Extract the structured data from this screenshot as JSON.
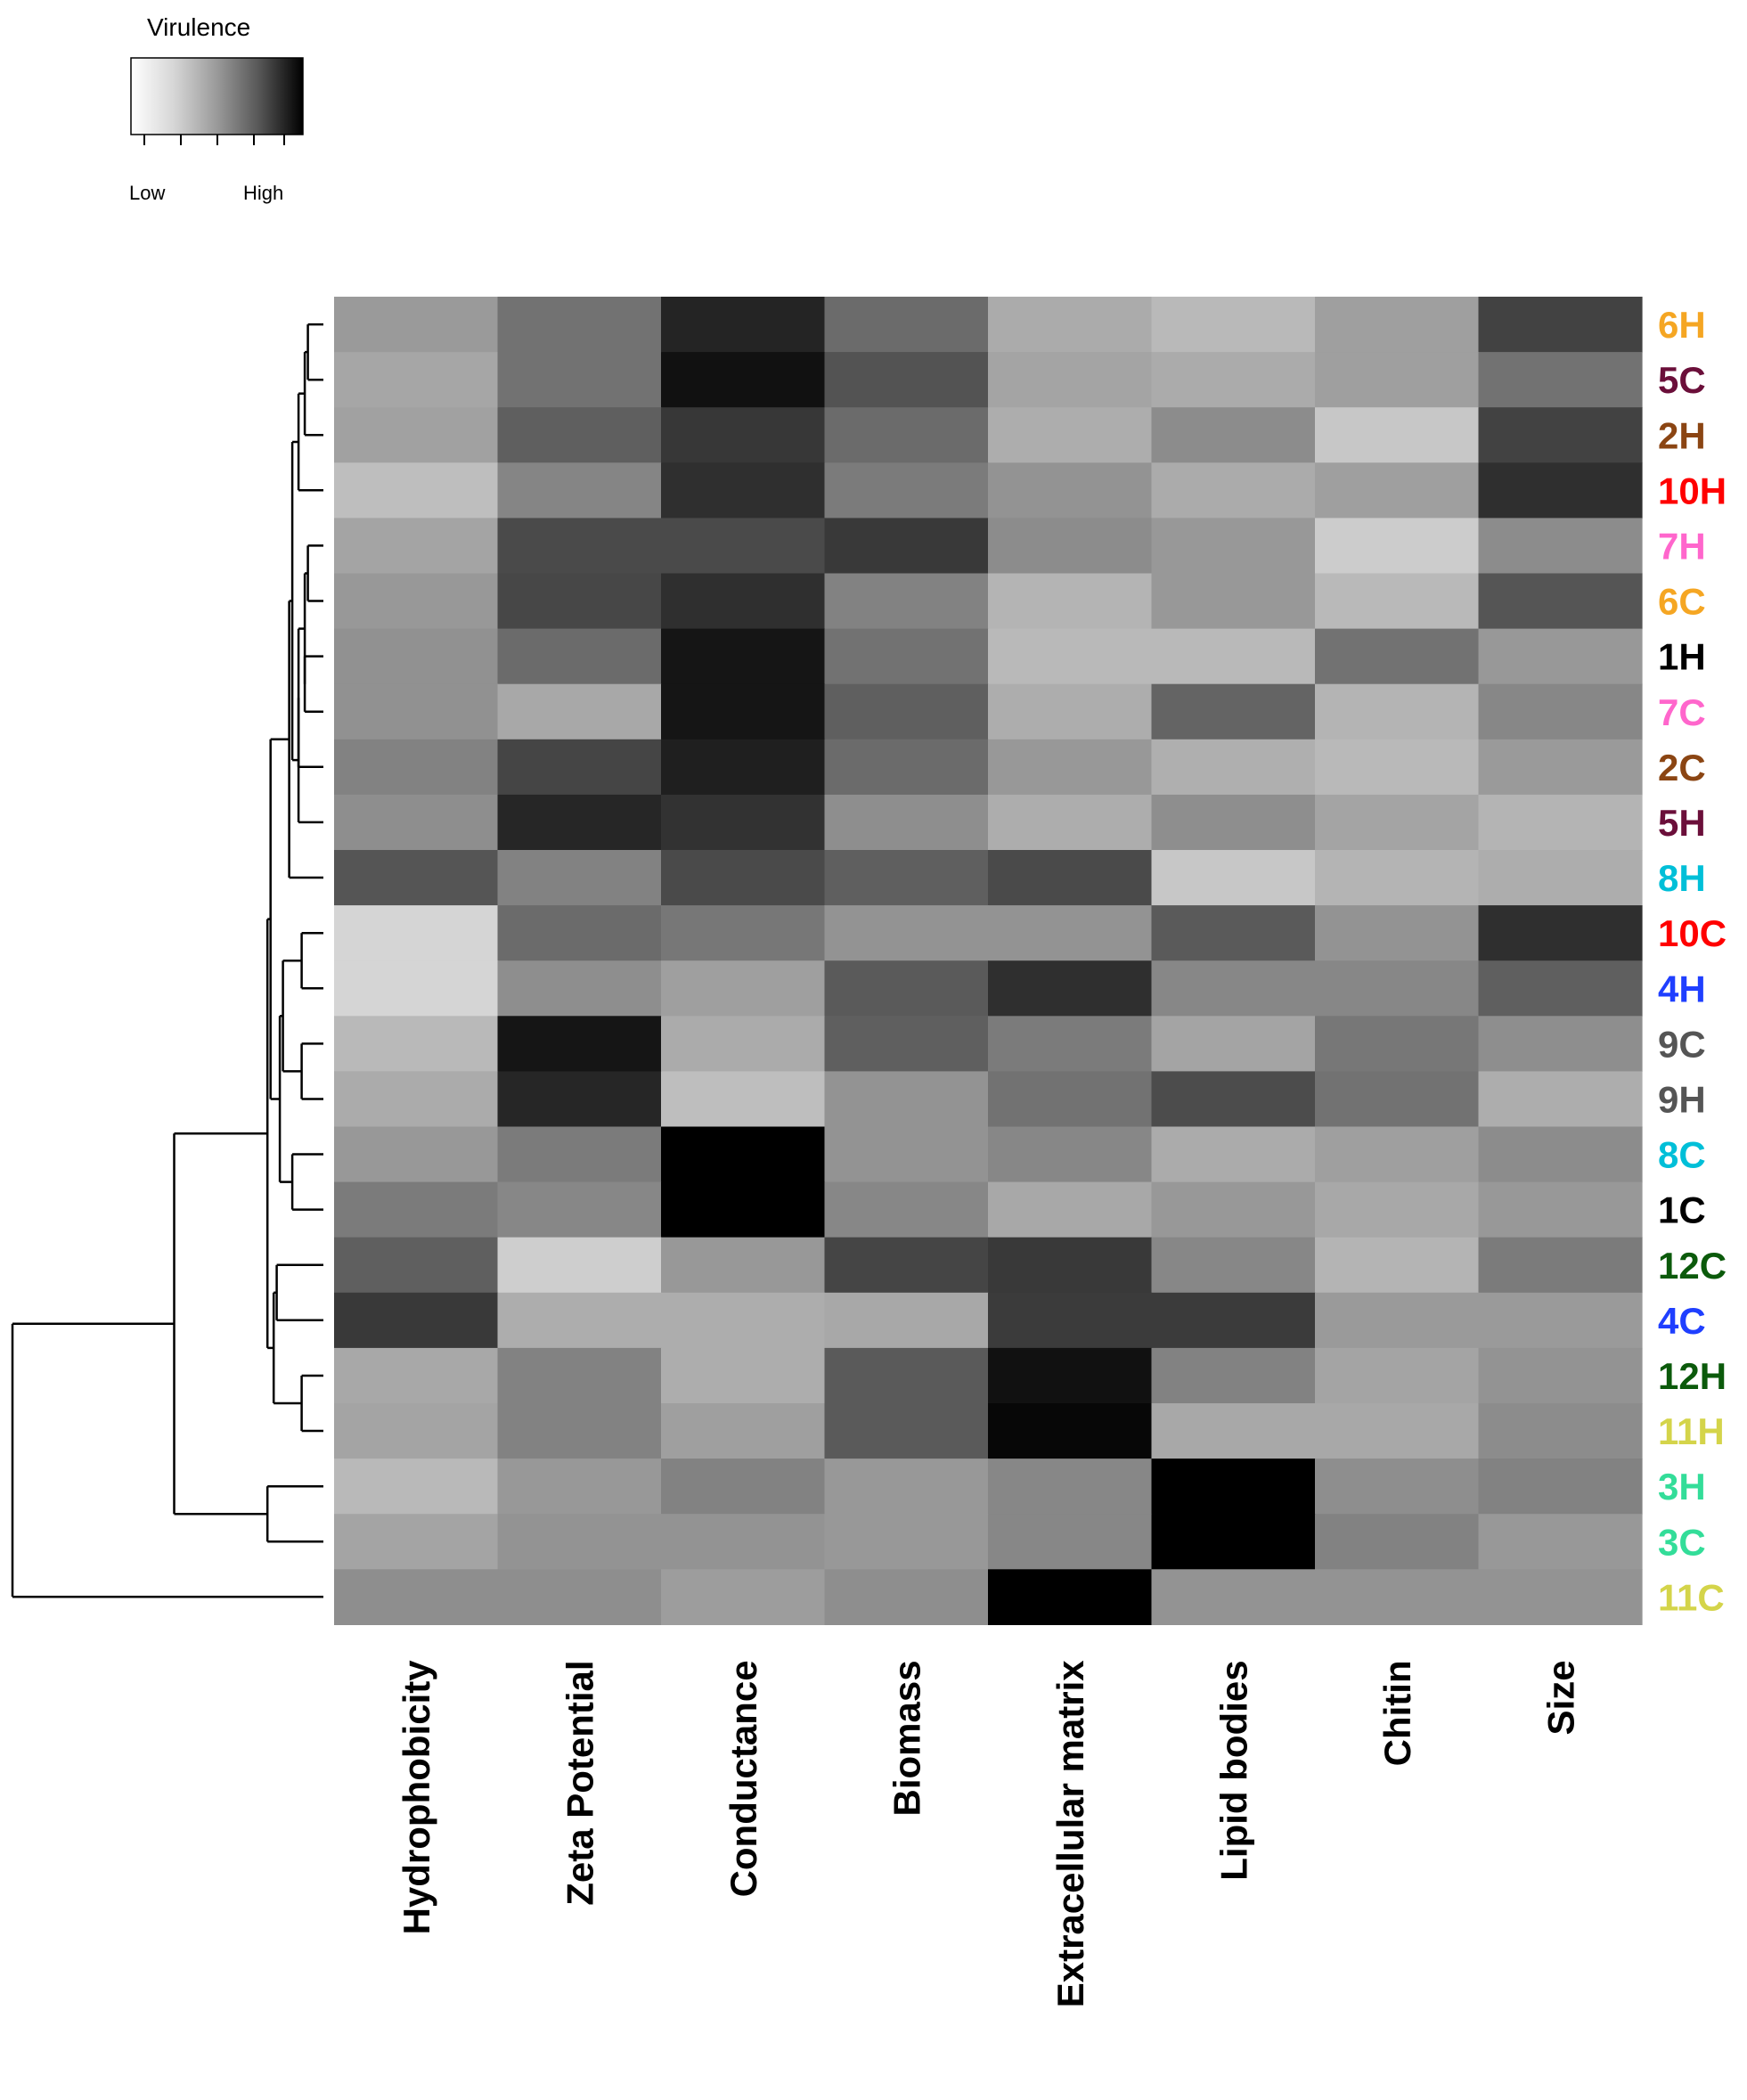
{
  "chart_data": {
    "type": "heatmap",
    "title": "",
    "legend": {
      "title": "Virulence",
      "low_label": "Low",
      "high_label": "High",
      "colors": [
        "#ffffff",
        "#000000"
      ],
      "placement": "top-left"
    },
    "columns": [
      "Hydrophobicity",
      "Zeta Potential",
      "Conductance",
      "Biomass",
      "Extracellular matrix",
      "Lipid bodies",
      "Chitin",
      "Size"
    ],
    "rows": [
      {
        "label": "6H",
        "color": "#F5A623",
        "values": [
          0.35,
          0.52,
          0.85,
          0.55,
          0.28,
          0.22,
          0.33,
          0.72
        ]
      },
      {
        "label": "5C",
        "color": "#6B0F3A",
        "values": [
          0.3,
          0.52,
          0.93,
          0.65,
          0.31,
          0.28,
          0.33,
          0.52
        ]
      },
      {
        "label": "2H",
        "color": "#8B4513",
        "values": [
          0.32,
          0.6,
          0.77,
          0.55,
          0.27,
          0.41,
          0.16,
          0.72
        ]
      },
      {
        "label": "10H",
        "color": "#FF0000",
        "values": [
          0.2,
          0.44,
          0.8,
          0.48,
          0.38,
          0.28,
          0.33,
          0.8
        ]
      },
      {
        "label": "7H",
        "color": "#FF66CC",
        "values": [
          0.31,
          0.69,
          0.69,
          0.76,
          0.41,
          0.36,
          0.14,
          0.41
        ]
      },
      {
        "label": "6C",
        "color": "#F5A623",
        "values": [
          0.36,
          0.7,
          0.8,
          0.45,
          0.24,
          0.36,
          0.22,
          0.64
        ]
      },
      {
        "label": "1H",
        "color": "#000000",
        "values": [
          0.39,
          0.55,
          0.91,
          0.52,
          0.22,
          0.22,
          0.52,
          0.36
        ]
      },
      {
        "label": "7C",
        "color": "#FF66CC",
        "values": [
          0.39,
          0.29,
          0.91,
          0.6,
          0.27,
          0.58,
          0.24,
          0.43
        ]
      },
      {
        "label": "2C",
        "color": "#8B4513",
        "values": [
          0.45,
          0.71,
          0.87,
          0.55,
          0.36,
          0.26,
          0.22,
          0.35
        ]
      },
      {
        "label": "5H",
        "color": "#6B0F3A",
        "values": [
          0.4,
          0.84,
          0.79,
          0.4,
          0.27,
          0.4,
          0.31,
          0.24
        ]
      },
      {
        "label": "8H",
        "color": "#00BFD8",
        "values": [
          0.64,
          0.45,
          0.69,
          0.6,
          0.69,
          0.16,
          0.24,
          0.27
        ]
      },
      {
        "label": "10C",
        "color": "#FF0000",
        "values": [
          0.1,
          0.55,
          0.5,
          0.38,
          0.38,
          0.62,
          0.38,
          0.8
        ]
      },
      {
        "label": "4H",
        "color": "#1F3FFF",
        "values": [
          0.1,
          0.4,
          0.33,
          0.62,
          0.8,
          0.43,
          0.43,
          0.6
        ]
      },
      {
        "label": "9C",
        "color": "#555555",
        "values": [
          0.22,
          0.91,
          0.28,
          0.6,
          0.48,
          0.31,
          0.5,
          0.4
        ]
      },
      {
        "label": "9H",
        "color": "#555555",
        "values": [
          0.28,
          0.84,
          0.2,
          0.38,
          0.52,
          0.68,
          0.52,
          0.27
        ]
      },
      {
        "label": "8C",
        "color": "#00BFD8",
        "values": [
          0.36,
          0.48,
          1.0,
          0.38,
          0.43,
          0.28,
          0.33,
          0.41
        ]
      },
      {
        "label": "1C",
        "color": "#000000",
        "values": [
          0.48,
          0.43,
          1.0,
          0.43,
          0.29,
          0.36,
          0.29,
          0.36
        ]
      },
      {
        "label": "12C",
        "color": "#0B5A0B",
        "values": [
          0.6,
          0.13,
          0.36,
          0.71,
          0.76,
          0.43,
          0.24,
          0.48
        ]
      },
      {
        "label": "4C",
        "color": "#1F3FFF",
        "values": [
          0.76,
          0.27,
          0.27,
          0.29,
          0.75,
          0.75,
          0.35,
          0.35
        ]
      },
      {
        "label": "12H",
        "color": "#0B5A0B",
        "values": [
          0.29,
          0.45,
          0.27,
          0.62,
          0.93,
          0.45,
          0.31,
          0.38
        ]
      },
      {
        "label": "11H",
        "color": "#D4D44A",
        "values": [
          0.31,
          0.45,
          0.33,
          0.62,
          0.97,
          0.29,
          0.29,
          0.41
        ]
      },
      {
        "label": "3H",
        "color": "#33DD99",
        "values": [
          0.22,
          0.36,
          0.45,
          0.36,
          0.43,
          1.0,
          0.4,
          0.45
        ]
      },
      {
        "label": "3C",
        "color": "#33DD99",
        "values": [
          0.31,
          0.38,
          0.38,
          0.36,
          0.43,
          1.0,
          0.45,
          0.36
        ]
      },
      {
        "label": "11C",
        "color": "#D4D44A",
        "values": [
          0.4,
          0.4,
          0.34,
          0.4,
          1.0,
          0.38,
          0.38,
          0.38
        ]
      }
    ],
    "row_dendrogram": {
      "leaves_order": [
        "6H",
        "5C",
        "2H",
        "10H",
        "7H",
        "6C",
        "1H",
        "7C",
        "2C",
        "5H",
        "8H",
        "10C",
        "4H",
        "9C",
        "9H",
        "8C",
        "1C",
        "12C",
        "4C",
        "12H",
        "11H",
        "3H",
        "3C",
        "11C"
      ],
      "merges": [
        {
          "left": "6H",
          "right": "5C",
          "height": 0.05
        },
        {
          "left": "7H",
          "right": "6C",
          "height": 0.05
        },
        {
          "left": "10C",
          "right": "4H",
          "height": 0.07
        },
        {
          "left": "12H",
          "right": "11H",
          "height": 0.07
        },
        {
          "left": "1H",
          "right": "7C",
          "height": 0.06
        },
        {
          "left": "m0",
          "right": "2H",
          "height": 0.06
        },
        {
          "left": "9C",
          "right": "9H",
          "height": 0.07
        },
        {
          "left": "8C",
          "right": "1C",
          "height": 0.1
        },
        {
          "left": "m5",
          "right": "10H",
          "height": 0.08
        },
        {
          "left": "m1",
          "right": "m4",
          "height": 0.06
        },
        {
          "left": "m9",
          "right": "2C",
          "height": 0.08
        },
        {
          "left": "m10",
          "right": "5H",
          "height": 0.08
        },
        {
          "left": "m8",
          "right": "m11",
          "height": 0.1
        },
        {
          "left": "m12",
          "right": "8H",
          "height": 0.11
        },
        {
          "left": "m2",
          "right": "m6",
          "height": 0.13
        },
        {
          "left": "m14",
          "right": "m7",
          "height": 0.14
        },
        {
          "left": "12C",
          "right": "4C",
          "height": 0.15
        },
        {
          "left": "m16",
          "right": "m3",
          "height": 0.16
        },
        {
          "left": "m13",
          "right": "m15",
          "height": 0.17
        },
        {
          "left": "m18",
          "right": "m17",
          "height": 0.18
        },
        {
          "left": "3H",
          "right": "3C",
          "height": 0.18
        },
        {
          "left": "m19",
          "right": "m20",
          "height": 0.48
        },
        {
          "left": "m21",
          "right": "11C",
          "height": 1.0
        }
      ]
    }
  }
}
